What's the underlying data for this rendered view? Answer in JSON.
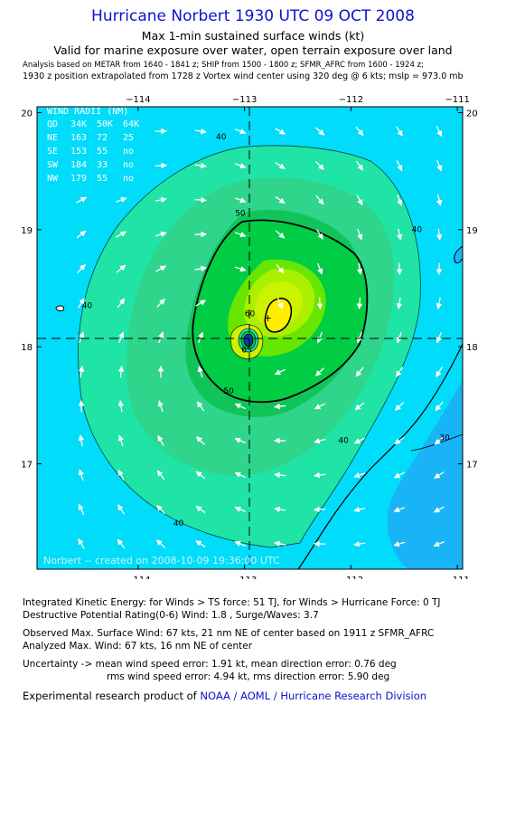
{
  "header": {
    "title": "Hurricane Norbert 1930 UTC 09 OCT 2008",
    "subtitle": "Max 1-min sustained surface winds (kt)",
    "valid_line": "Valid for marine exposure over water, open terrain exposure over land",
    "analysis_line": "Analysis based on   METAR from 1640 - 1841 z;  SHIP from 1500 - 1800 z;  SFMR_AFRC from 1600 - 1924 z;",
    "position_line": "1930 z position extrapolated from 1728 z Vortex wind center using 320 deg @ 6 kts; mslp = 973.0 mb"
  },
  "chart_data": {
    "type": "contour",
    "x_ticks": [
      "−114",
      "−113",
      "−112",
      "−111"
    ],
    "y_ticks": [
      "20",
      "19",
      "18",
      "17"
    ],
    "xlim": [
      -114.95,
      -110.95
    ],
    "ylim": [
      16.1,
      20.05
    ],
    "center": {
      "lon": -113.0,
      "lat": 18.08
    },
    "max_wind_marker": {
      "lon": -112.78,
      "lat": 18.25
    },
    "contour_labels": [
      {
        "text": "40",
        "lon": -113.22,
        "lat": 19.77
      },
      {
        "text": "40",
        "lon": -111.38,
        "lat": 18.98
      },
      {
        "text": "40",
        "lon": -114.48,
        "lat": 18.33
      },
      {
        "text": "40",
        "lon": -112.07,
        "lat": 17.18
      },
      {
        "text": "40",
        "lon": -113.62,
        "lat": 16.47
      },
      {
        "text": "50",
        "lon": -113.04,
        "lat": 19.12
      },
      {
        "text": "50",
        "lon": -113.15,
        "lat": 17.6
      },
      {
        "text": "30",
        "lon": -111.12,
        "lat": 17.2
      },
      {
        "text": "60",
        "lon": -112.95,
        "lat": 18.26
      },
      {
        "text": "65",
        "lon": -112.98,
        "lat": 17.95
      }
    ],
    "wind_radii": {
      "title": "WIND RADII (NM)",
      "columns": [
        "QD",
        "34K",
        "50K",
        "64K"
      ],
      "rows": [
        [
          "NE",
          "163",
          "72",
          "25"
        ],
        [
          "SE",
          "153",
          "55",
          "no"
        ],
        [
          "SW",
          "184",
          "33",
          "no"
        ],
        [
          "NW",
          "179",
          "55",
          "no"
        ]
      ]
    },
    "created_note": "Norbert -- created on 2008-10-09 19:36:00 UTC",
    "colors": {
      "ocean": "#00dcfa",
      "land": "#18b4f6",
      "c40": "#20e3a6",
      "c50": "#00cc44",
      "c60": "#66e600",
      "c65": "#ccf200",
      "c70": "#ffee00"
    }
  },
  "info": {
    "ike": "Integrated Kinetic Energy:  for Winds > TS force: 51 TJ,  for Winds > Hurricane Force: 0 TJ",
    "dp": "Destructive Potential Rating(0-6)   Wind: 1.8 , Surge/Waves: 3.7",
    "obs": "Observed Max. Surface Wind: 67 kts, 21 nm NE of center based on 1911 z SFMR_AFRC",
    "analyzed": "Analyzed Max. Wind: 67 kts, 16 nm NE of center",
    "unc1": "Uncertainty -> mean wind speed error: 1.91 kt,   mean direction error: 0.76 deg",
    "unc2": "rms wind speed error: 4.94 kt,   rms direction error: 5.90 deg",
    "footer_prefix": "Experimental research product of ",
    "footer_link": "NOAA / AOML / Hurricane Research Division"
  }
}
